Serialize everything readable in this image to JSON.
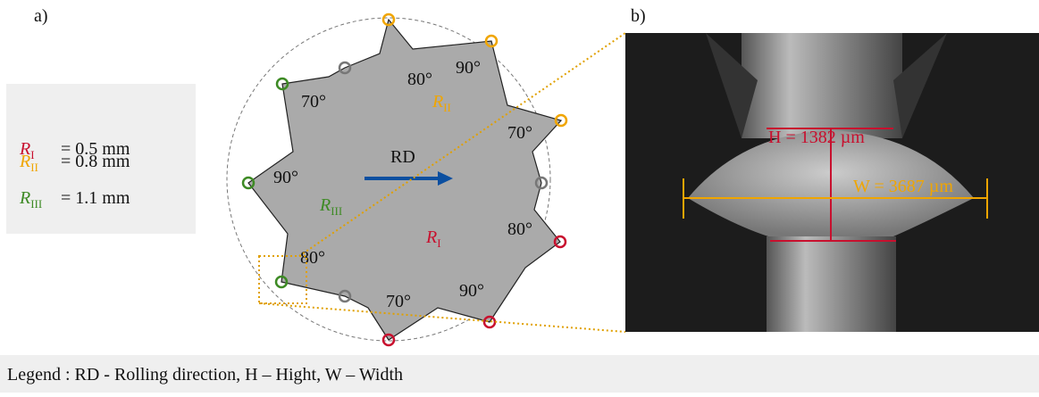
{
  "panels": {
    "a": "a)",
    "b": "b)"
  },
  "radii": [
    {
      "symbol": "R",
      "subscript": "I",
      "value": "= 0.5 mm"
    },
    {
      "symbol": "R",
      "subscript": "II",
      "value": "= 0.8 mm"
    },
    {
      "symbol": "R",
      "subscript": "III",
      "value": "= 1.1 mm"
    }
  ],
  "angles": [
    "80°",
    "90°",
    "70°",
    "70°",
    "90°",
    "80°",
    "80°",
    "90°",
    "70°"
  ],
  "regions": [
    {
      "symbol": "R",
      "subscript": "II"
    },
    {
      "symbol": "R",
      "subscript": "III"
    },
    {
      "symbol": "R",
      "subscript": "I"
    }
  ],
  "direction": "RD",
  "measurements": {
    "height": "H = 1382 µm",
    "width": "W = 3687 µm"
  },
  "legend": "Legend : RD - Rolling direction, H – Hight, W – Width"
}
